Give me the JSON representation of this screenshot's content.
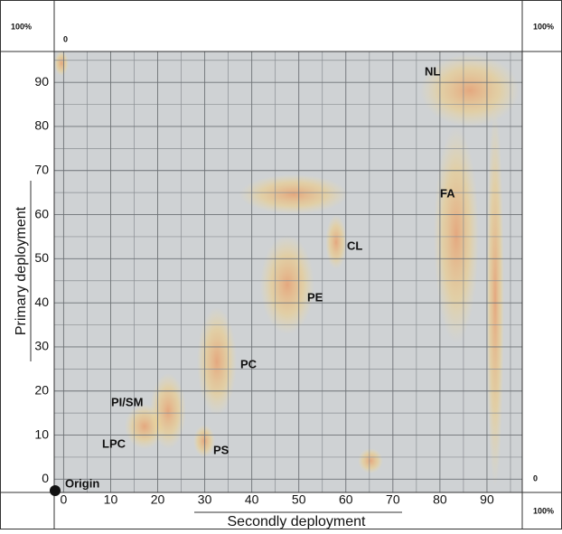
{
  "chart_data": {
    "type": "density",
    "x_label": "Secondly deployment",
    "y_label": "Primary deployment",
    "xlim": [
      -2,
      97.5
    ],
    "ylim": [
      -3,
      97
    ],
    "xticks": [
      0,
      10,
      20,
      30,
      40,
      50,
      60,
      70,
      80,
      90
    ],
    "yticks": [
      0,
      10,
      20,
      30,
      40,
      50,
      60,
      70,
      80,
      90
    ],
    "grid": true,
    "annotations": [
      "NL",
      "FA",
      "CL",
      "PE",
      "PC",
      "PI/SM",
      "LPC",
      "PS",
      "Origin"
    ],
    "corner_labels": {
      "top_left": "100%",
      "top_left_zero": "0",
      "top_right": "100%",
      "right_zero": "0",
      "bottom_right": "100%"
    }
  }
}
